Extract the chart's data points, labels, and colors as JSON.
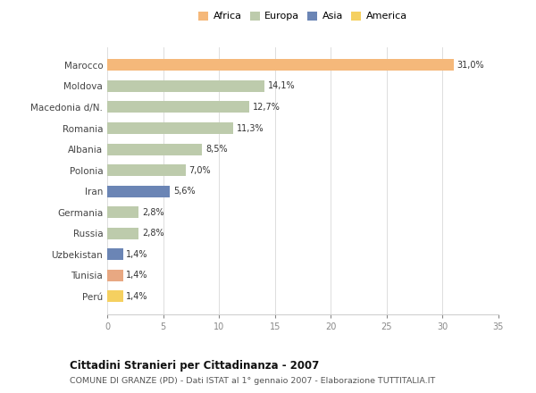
{
  "countries": [
    "Marocco",
    "Moldova",
    "Macedonia d/N.",
    "Romania",
    "Albania",
    "Polonia",
    "Iran",
    "Germania",
    "Russia",
    "Uzbekistan",
    "Tunisia",
    "Perú"
  ],
  "values": [
    31.0,
    14.1,
    12.7,
    11.3,
    8.5,
    7.0,
    5.6,
    2.8,
    2.8,
    1.4,
    1.4,
    1.4
  ],
  "labels": [
    "31,0%",
    "14,1%",
    "12,7%",
    "11,3%",
    "8,5%",
    "7,0%",
    "5,6%",
    "2,8%",
    "2,8%",
    "1,4%",
    "1,4%",
    "1,4%"
  ],
  "colors": [
    "#F5B87A",
    "#BDCBAC",
    "#BDCBAC",
    "#BDCBAC",
    "#BDCBAC",
    "#BDCBAC",
    "#6B85B5",
    "#BDCBAC",
    "#BDCBAC",
    "#6B85B5",
    "#E8A882",
    "#F5D060"
  ],
  "legend_labels": [
    "Africa",
    "Europa",
    "Asia",
    "America"
  ],
  "legend_colors": [
    "#F5B87A",
    "#BDCBAC",
    "#6B85B5",
    "#F5D060"
  ],
  "title": "Cittadini Stranieri per Cittadinanza - 2007",
  "subtitle": "COMUNE DI GRANZE (PD) - Dati ISTAT al 1° gennaio 2007 - Elaborazione TUTTITALIA.IT",
  "xlim": [
    0,
    35
  ],
  "xticks": [
    0,
    5,
    10,
    15,
    20,
    25,
    30,
    35
  ],
  "bg_color": "#FFFFFF",
  "bar_height": 0.55
}
